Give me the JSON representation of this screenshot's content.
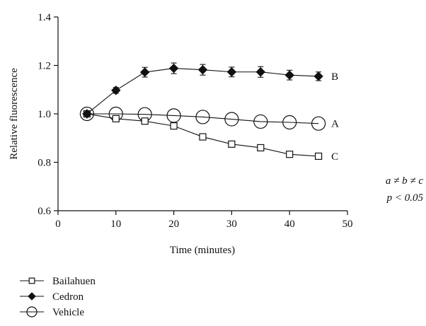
{
  "chart_data": {
    "type": "line",
    "title": "",
    "xlabel": "Time (minutes)",
    "ylabel": "Relative fluorescence",
    "xlim": [
      0,
      50
    ],
    "ylim": [
      0.6,
      1.4
    ],
    "x_ticks": [
      "0",
      "10",
      "20",
      "30",
      "40",
      "50"
    ],
    "y_ticks": [
      "0.6",
      "0.8",
      "1.0",
      "1.2",
      "1.4"
    ],
    "x": [
      5,
      10,
      15,
      20,
      25,
      30,
      35,
      40,
      45
    ],
    "series": [
      {
        "name": "Bailahuen",
        "marker": "open-square",
        "end_label": "C",
        "values": [
          1.0,
          0.98,
          0.97,
          0.95,
          0.905,
          0.875,
          0.86,
          0.833,
          0.825
        ],
        "errors": [
          0,
          0.006,
          0.006,
          0.006,
          0.006,
          0.006,
          0.006,
          0.006,
          0.006
        ]
      },
      {
        "name": "Cedron",
        "marker": "filled-diamond",
        "end_label": "B",
        "values": [
          1.0,
          1.097,
          1.172,
          1.188,
          1.182,
          1.173,
          1.173,
          1.16,
          1.155
        ],
        "errors": [
          0,
          0.012,
          0.02,
          0.022,
          0.022,
          0.02,
          0.022,
          0.02,
          0.018
        ]
      },
      {
        "name": "Vehicle",
        "marker": "open-circle",
        "end_label": "A",
        "values": [
          1.0,
          1.0,
          0.998,
          0.993,
          0.987,
          0.978,
          0.968,
          0.965,
          0.96
        ],
        "errors": [
          0,
          0,
          0,
          0,
          0,
          0,
          0,
          0,
          0
        ]
      }
    ],
    "legend": "bottom-left",
    "grid": false,
    "annotation": {
      "line1": "a ≠ b ≠ c",
      "line2": "p < 0.05"
    }
  }
}
